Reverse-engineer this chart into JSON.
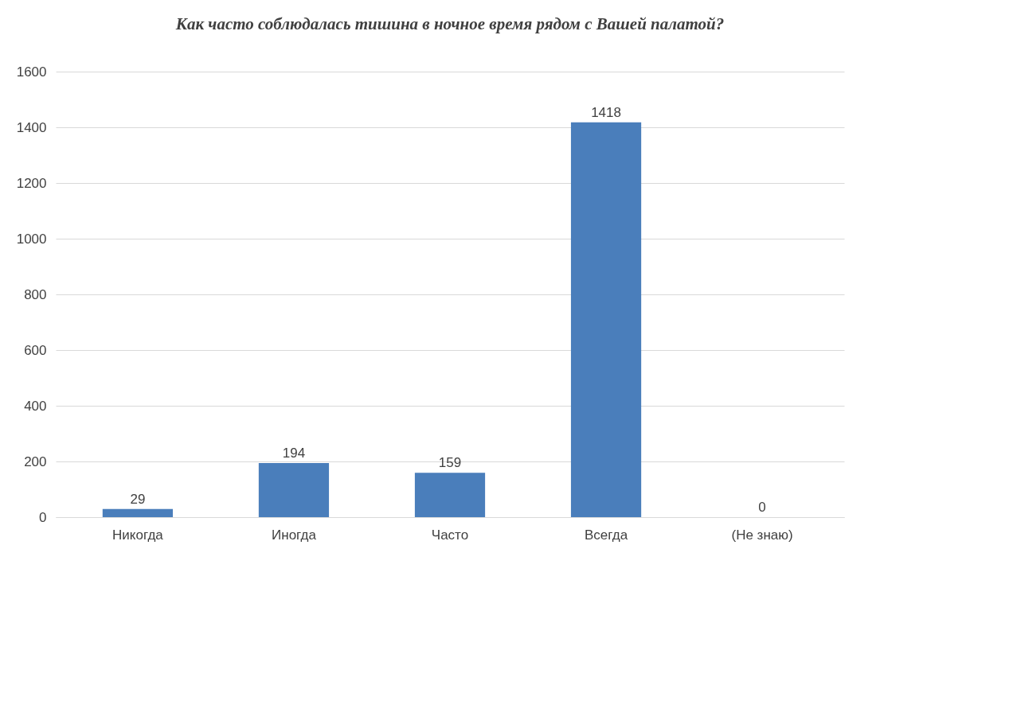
{
  "chart_data": {
    "type": "bar",
    "title": "Как часто соблюдалась тишина в ночное время рядом с Вашей палатой?",
    "categories": [
      "Никогда",
      "Иногда",
      "Часто",
      "Всегда",
      "(Не знаю)"
    ],
    "values": [
      29,
      194,
      159,
      1418,
      0
    ],
    "colors": [
      "#4a7ebb",
      "#4a7ebb",
      "#4a7ebb",
      "#4a7ebb",
      "#1f2a36"
    ],
    "ylim": [
      0,
      1600
    ],
    "yticks": [
      0,
      200,
      400,
      600,
      800,
      1000,
      1200,
      1400,
      1600
    ],
    "grid": "y",
    "data_labels": true
  }
}
